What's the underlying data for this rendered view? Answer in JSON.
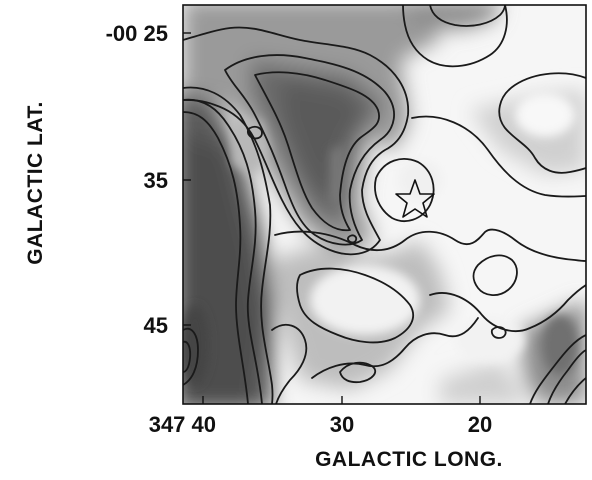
{
  "figure": {
    "axes": {
      "x_label": "GALACTIC LONG.",
      "y_label": "GALACTIC LAT.",
      "x_ticks": [
        "347 40",
        "30",
        "20"
      ],
      "y_ticks": [
        "-00 25",
        "35",
        "45"
      ]
    },
    "map": {
      "type": "greyscale contour map",
      "marker": "star-icon",
      "colors": {
        "background": "#ffffff",
        "contour": "#1a1a1a",
        "dark": "#555555",
        "light": "#f4f4f4"
      }
    }
  }
}
